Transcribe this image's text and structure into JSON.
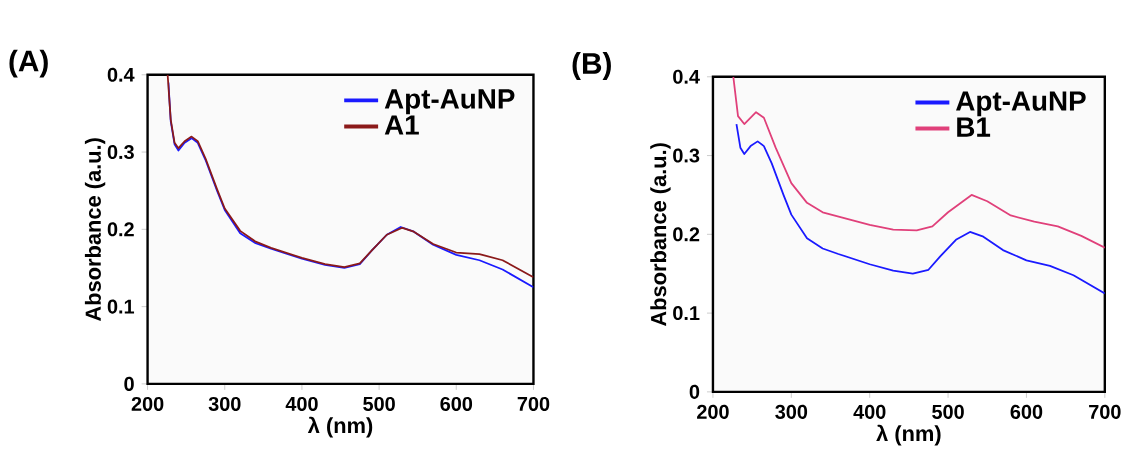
{
  "chart_data": [
    {
      "type": "line",
      "title": "(A)",
      "xlabel": "λ (nm)",
      "ylabel": "Absorbance (a.u.)",
      "xlim": [
        200,
        700
      ],
      "ylim": [
        0,
        0.4
      ],
      "xticks": [
        200,
        300,
        400,
        500,
        600,
        700
      ],
      "yticks": [
        0,
        0.1,
        0.2,
        0.3,
        0.4
      ],
      "legend": "top right",
      "series": [
        {
          "name": "Apt-AuNP",
          "color": "#1a1aff",
          "x": [
            227,
            230,
            235,
            240,
            248,
            257,
            265,
            275,
            290,
            300,
            320,
            340,
            360,
            400,
            430,
            455,
            475,
            490,
            510,
            528,
            545,
            570,
            600,
            630,
            660,
            700
          ],
          "values": [
            0.39,
            0.34,
            0.31,
            0.302,
            0.312,
            0.318,
            0.312,
            0.29,
            0.25,
            0.225,
            0.195,
            0.182,
            0.175,
            0.162,
            0.154,
            0.15,
            0.155,
            0.172,
            0.193,
            0.203,
            0.197,
            0.18,
            0.167,
            0.16,
            0.148,
            0.125
          ]
        },
        {
          "name": "A1",
          "color": "#8b1a1a",
          "x": [
            226,
            230,
            235,
            240,
            248,
            257,
            265,
            275,
            290,
            300,
            320,
            340,
            360,
            400,
            430,
            455,
            475,
            490,
            510,
            530,
            545,
            570,
            600,
            630,
            660,
            700
          ],
          "values": [
            0.4,
            0.342,
            0.312,
            0.305,
            0.314,
            0.32,
            0.314,
            0.292,
            0.252,
            0.227,
            0.198,
            0.184,
            0.176,
            0.163,
            0.155,
            0.151,
            0.156,
            0.172,
            0.193,
            0.202,
            0.197,
            0.181,
            0.17,
            0.168,
            0.16,
            0.138
          ]
        }
      ]
    },
    {
      "type": "line",
      "title": "(B)",
      "xlabel": "λ (nm)",
      "ylabel": "Absorbance (a.u.)",
      "xlim": [
        200,
        700
      ],
      "ylim": [
        0,
        0.4
      ],
      "xticks": [
        200,
        300,
        400,
        500,
        600,
        700
      ],
      "yticks": [
        0,
        0.1,
        0.2,
        0.3,
        0.4
      ],
      "legend": "top right",
      "series": [
        {
          "name": "Apt-AuNP",
          "color": "#1a1aff",
          "x": [
            230,
            235,
            240,
            248,
            257,
            265,
            275,
            290,
            300,
            320,
            340,
            360,
            400,
            430,
            455,
            475,
            490,
            510,
            528,
            545,
            570,
            600,
            630,
            660,
            700
          ],
          "values": [
            0.34,
            0.31,
            0.302,
            0.312,
            0.318,
            0.312,
            0.29,
            0.25,
            0.225,
            0.195,
            0.182,
            0.175,
            0.162,
            0.154,
            0.15,
            0.155,
            0.172,
            0.193,
            0.203,
            0.197,
            0.18,
            0.167,
            0.16,
            0.148,
            0.125
          ]
        },
        {
          "name": "B1",
          "color": "#e0407a",
          "x": [
            226,
            232,
            240,
            255,
            265,
            280,
            300,
            320,
            340,
            370,
            400,
            430,
            460,
            480,
            500,
            530,
            550,
            580,
            610,
            640,
            670,
            700
          ],
          "values": [
            0.4,
            0.35,
            0.34,
            0.355,
            0.348,
            0.31,
            0.265,
            0.24,
            0.228,
            0.22,
            0.212,
            0.206,
            0.205,
            0.21,
            0.228,
            0.25,
            0.242,
            0.224,
            0.216,
            0.21,
            0.198,
            0.183
          ]
        }
      ]
    }
  ]
}
